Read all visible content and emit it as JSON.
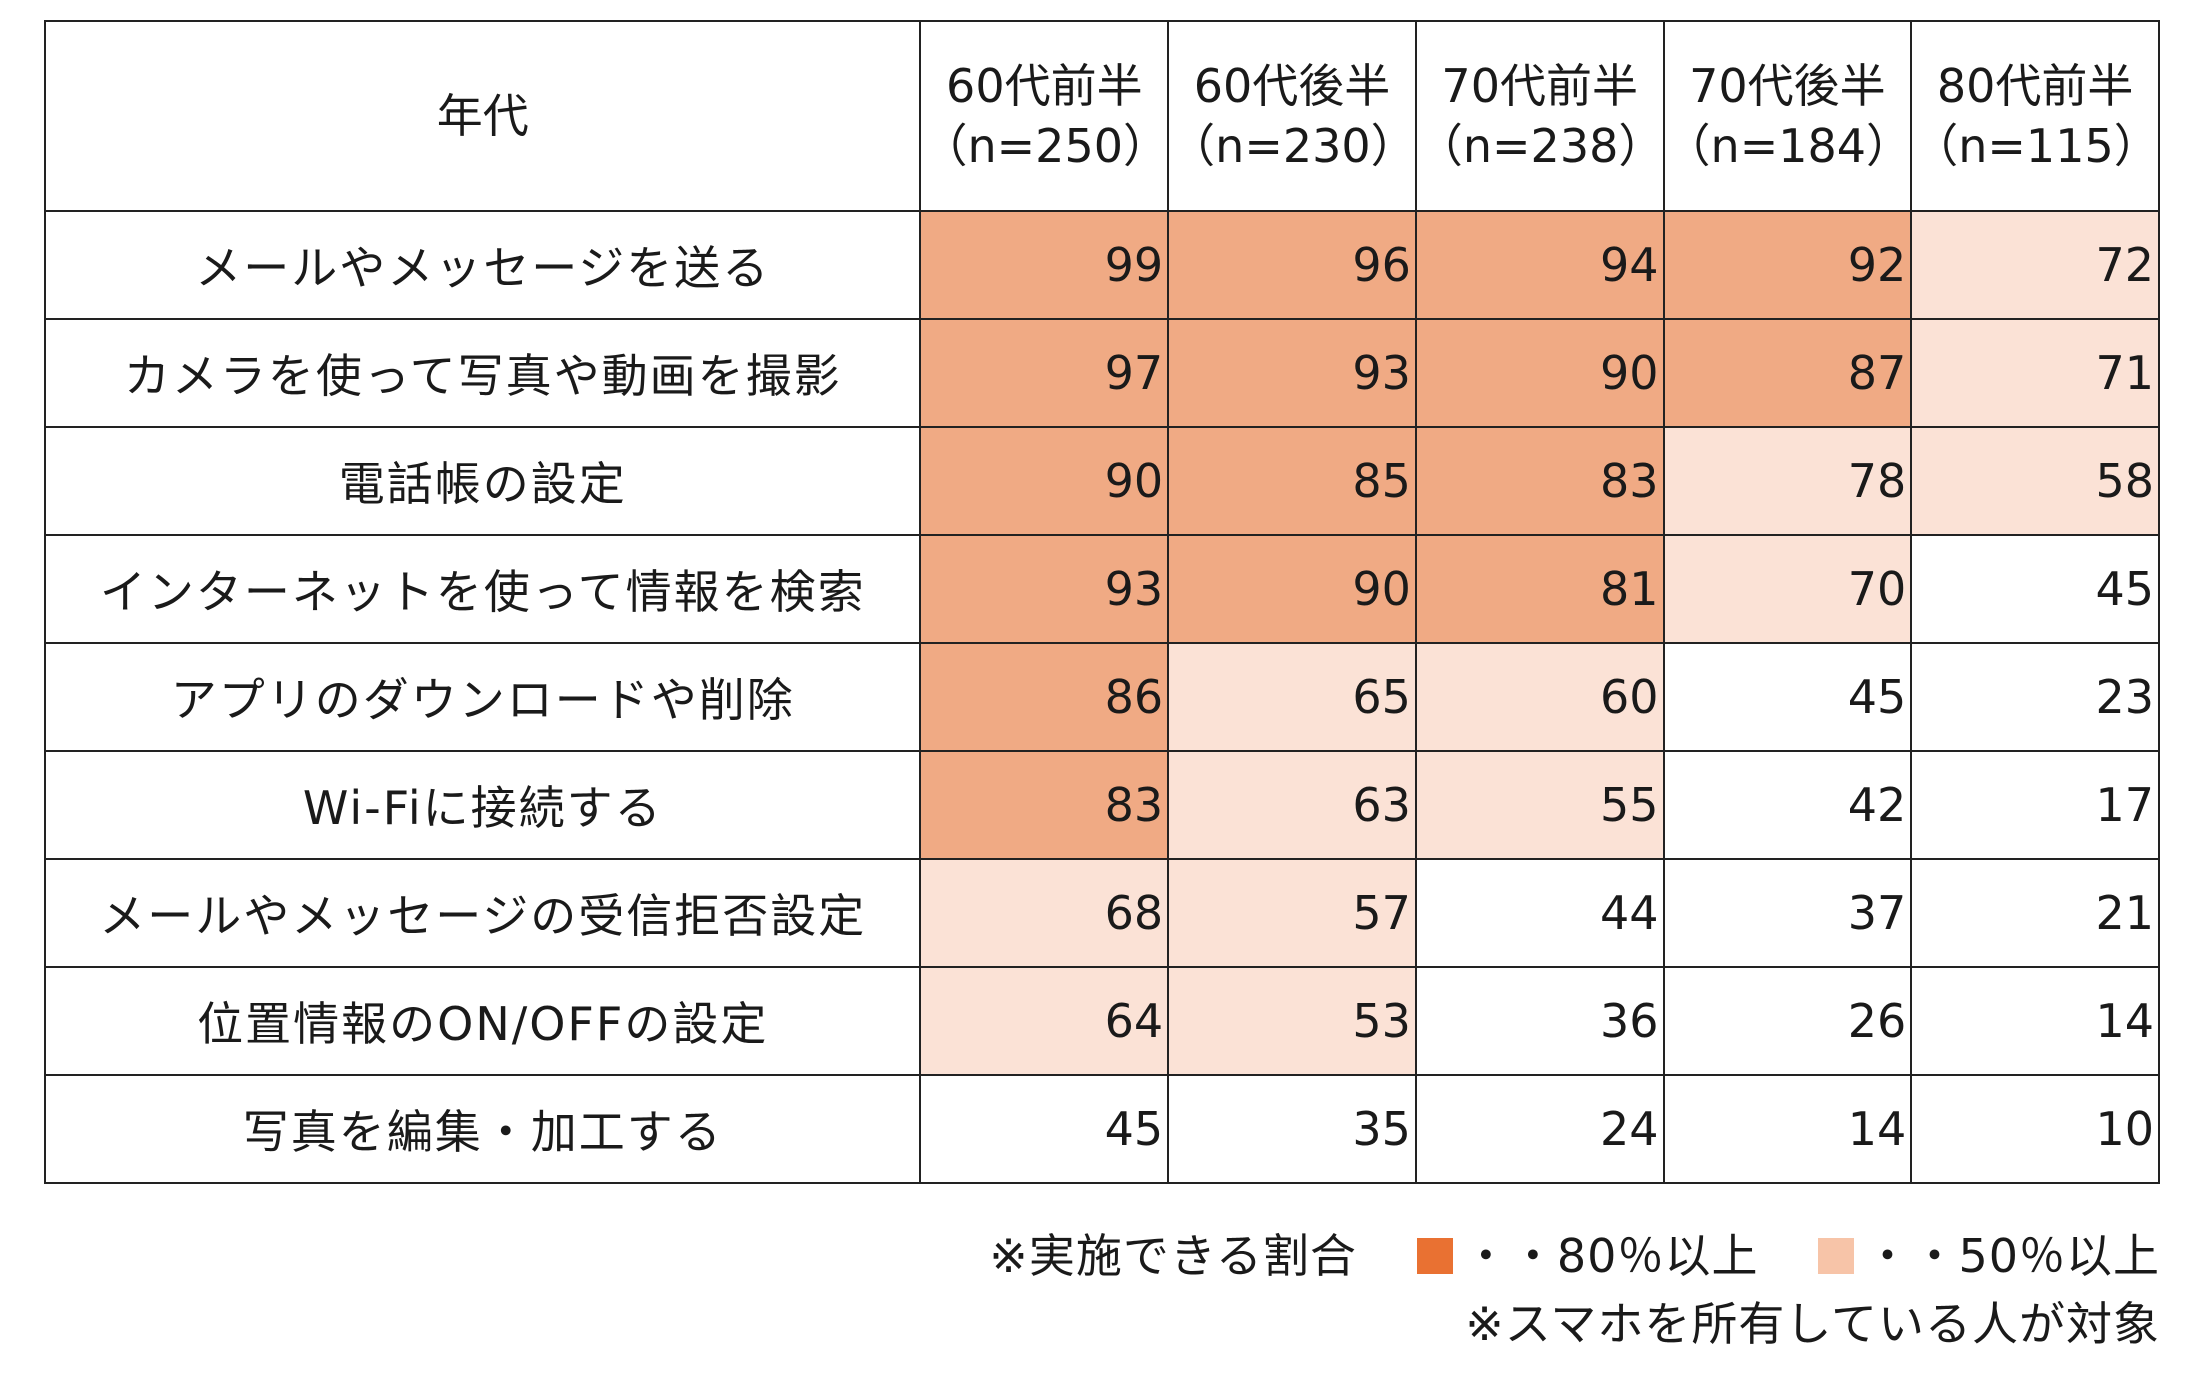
{
  "chart_data": {
    "type": "table",
    "corner_header": "年代",
    "columns": [
      {
        "label": "60代前半",
        "n": "（n=250）"
      },
      {
        "label": "60代後半",
        "n": "（n=230）"
      },
      {
        "label": "70代前半",
        "n": "（n=238）"
      },
      {
        "label": "70代後半",
        "n": "（n=184）"
      },
      {
        "label": "80代前半",
        "n": "（n=115）"
      }
    ],
    "rows": [
      {
        "label": "メールやメッセージを送る",
        "values": [
          99,
          96,
          94,
          92,
          72
        ]
      },
      {
        "label": "カメラを使って写真や動画を撮影",
        "values": [
          97,
          93,
          90,
          87,
          71
        ]
      },
      {
        "label": "電話帳の設定",
        "values": [
          90,
          85,
          83,
          78,
          58
        ]
      },
      {
        "label": "インターネットを使って情報を検索",
        "values": [
          93,
          90,
          81,
          70,
          45
        ]
      },
      {
        "label": "アプリのダウンロードや削除",
        "values": [
          86,
          65,
          60,
          45,
          23
        ]
      },
      {
        "label": "Wi-Fiに接続する",
        "values": [
          83,
          63,
          55,
          42,
          17
        ]
      },
      {
        "label": "メールやメッセージの受信拒否設定",
        "values": [
          68,
          57,
          44,
          37,
          21
        ]
      },
      {
        "label": "位置情報のON/OFFの設定",
        "values": [
          64,
          53,
          36,
          26,
          14
        ]
      },
      {
        "label": "写真を編集・加工する",
        "values": [
          45,
          35,
          24,
          14,
          10
        ]
      }
    ],
    "thresholds": {
      "high": 80,
      "mid": 50
    },
    "colors": {
      "high_cell": "#F0AA84",
      "mid_cell": "#FBE2D6",
      "high_legend": "#E97132",
      "mid_legend": "#F7C4A8"
    }
  },
  "notes": {
    "legend_prefix": "※実施できる割合",
    "legend_high": "・・80％以上",
    "legend_mid": "・・50％以上",
    "target_note": "※スマホを所有している人が対象"
  }
}
